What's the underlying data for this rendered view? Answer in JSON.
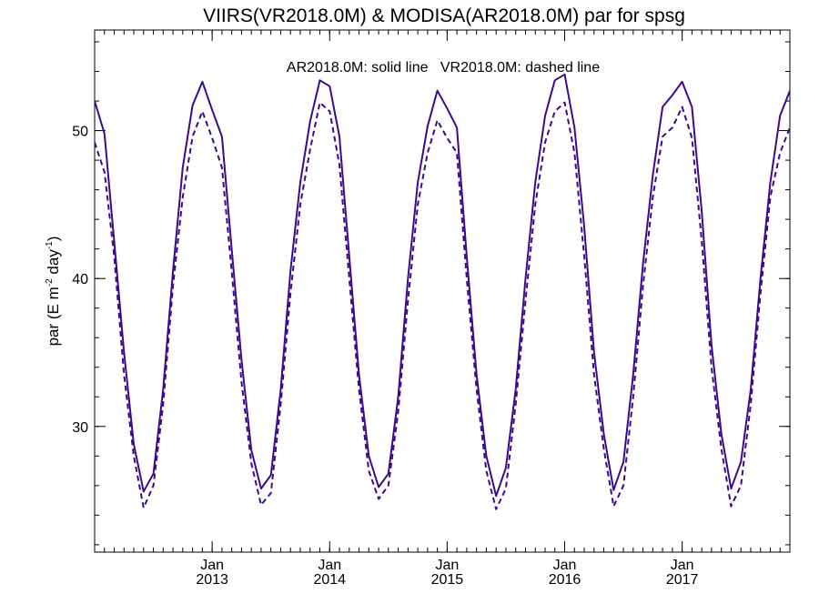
{
  "chart_data": {
    "type": "line",
    "title": "VIIRS(VR2018.0M) & MODISA(AR2018.0M)  par for spsg",
    "annotation": "AR2018.0M: solid line   VR2018.0M: dashed line",
    "ylabel": {
      "main": "par (E m",
      "sup1": "-2",
      "mid": " day",
      "sup2": "-1",
      "end": ")"
    },
    "xlim": [
      "2012-01",
      "2017-12"
    ],
    "ylim": [
      21.5,
      56.8
    ],
    "x_tick_labels": [
      {
        "month": "Jan",
        "year": "2013",
        "x": "2013-01"
      },
      {
        "month": "Jan",
        "year": "2014",
        "x": "2014-01"
      },
      {
        "month": "Jan",
        "year": "2015",
        "x": "2015-01"
      },
      {
        "month": "Jan",
        "year": "2016",
        "x": "2016-01"
      },
      {
        "month": "Jan",
        "year": "2017",
        "x": "2017-01"
      }
    ],
    "y_ticks": [
      30,
      40,
      50
    ],
    "line_color": "#3d0a8c",
    "x": [
      "2012-01",
      "2012-02",
      "2012-03",
      "2012-04",
      "2012-05",
      "2012-06",
      "2012-07",
      "2012-08",
      "2012-09",
      "2012-10",
      "2012-11",
      "2012-12",
      "2013-01",
      "2013-02",
      "2013-03",
      "2013-04",
      "2013-05",
      "2013-06",
      "2013-07",
      "2013-08",
      "2013-09",
      "2013-10",
      "2013-11",
      "2013-12",
      "2014-01",
      "2014-02",
      "2014-03",
      "2014-04",
      "2014-05",
      "2014-06",
      "2014-07",
      "2014-08",
      "2014-09",
      "2014-10",
      "2014-11",
      "2014-12",
      "2015-01",
      "2015-02",
      "2015-03",
      "2015-04",
      "2015-05",
      "2015-06",
      "2015-07",
      "2015-08",
      "2015-09",
      "2015-10",
      "2015-11",
      "2015-12",
      "2016-01",
      "2016-02",
      "2016-03",
      "2016-04",
      "2016-05",
      "2016-06",
      "2016-07",
      "2016-08",
      "2016-09",
      "2016-10",
      "2016-11",
      "2016-12",
      "2017-01",
      "2017-02",
      "2017-03",
      "2017-04",
      "2017-05",
      "2017-06",
      "2017-07",
      "2017-08",
      "2017-09",
      "2017-10",
      "2017-11",
      "2017-12"
    ],
    "series": [
      {
        "name": "AR2018.0M",
        "style": "solid",
        "values": [
          52.0,
          49.8,
          42.5,
          35.0,
          28.8,
          25.6,
          26.8,
          32.5,
          40.5,
          47.5,
          51.7,
          53.3,
          51.4,
          49.6,
          42.0,
          34.5,
          28.4,
          25.8,
          26.7,
          32.5,
          40.5,
          46.5,
          50.6,
          53.4,
          53.0,
          49.6,
          41.5,
          33.5,
          28.0,
          25.9,
          26.8,
          32.0,
          40.0,
          46.5,
          50.3,
          52.7,
          51.5,
          50.2,
          41.5,
          33.5,
          28.0,
          25.3,
          27.2,
          32.5,
          40.0,
          46.5,
          51.0,
          53.4,
          53.8,
          50.2,
          43.5,
          35.0,
          29.5,
          25.7,
          27.6,
          33.5,
          41.0,
          47.0,
          51.6,
          52.4,
          53.3,
          51.6,
          44.5,
          35.5,
          29.5,
          25.8,
          27.6,
          32.5,
          40.0,
          46.5,
          51.0,
          52.7
        ]
      },
      {
        "name": "VR2018.0M",
        "style": "dashed",
        "values": [
          49.2,
          47.2,
          41.5,
          33.5,
          28.0,
          24.5,
          26.0,
          31.5,
          39.5,
          45.5,
          49.6,
          51.3,
          49.5,
          47.5,
          40.5,
          33.0,
          27.5,
          24.7,
          25.5,
          31.5,
          39.0,
          45.0,
          48.7,
          51.9,
          51.3,
          47.7,
          40.0,
          32.5,
          27.0,
          25.1,
          26.0,
          31.0,
          38.5,
          45.0,
          48.5,
          50.7,
          49.5,
          48.5,
          40.0,
          32.5,
          27.0,
          24.4,
          25.8,
          31.5,
          38.5,
          45.0,
          49.2,
          51.3,
          51.9,
          48.5,
          41.5,
          33.5,
          28.5,
          24.6,
          26.0,
          32.0,
          39.5,
          45.5,
          49.6,
          50.2,
          51.6,
          49.5,
          42.5,
          34.0,
          28.5,
          24.6,
          26.0,
          31.5,
          39.0,
          45.5,
          48.5,
          50.2
        ]
      }
    ]
  }
}
